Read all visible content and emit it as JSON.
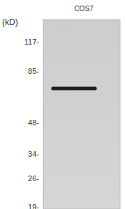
{
  "chart_data": {
    "type": "western_blot",
    "categories": [
      "COS7"
    ],
    "values": [
      70
    ],
    "y_label": "(kD)",
    "ylim": [
      18.5,
      150
    ],
    "log": "y",
    "color": "#1e1e1e",
    "yticks": [
      {
        "value": 117,
        "label": "117-"
      },
      {
        "value": 85,
        "label": "85-"
      },
      {
        "value": 48,
        "label": "48-"
      },
      {
        "value": 34,
        "label": "34-"
      },
      {
        "value": 26,
        "label": "26-"
      },
      {
        "value": 19,
        "label": "19-"
      }
    ]
  }
}
